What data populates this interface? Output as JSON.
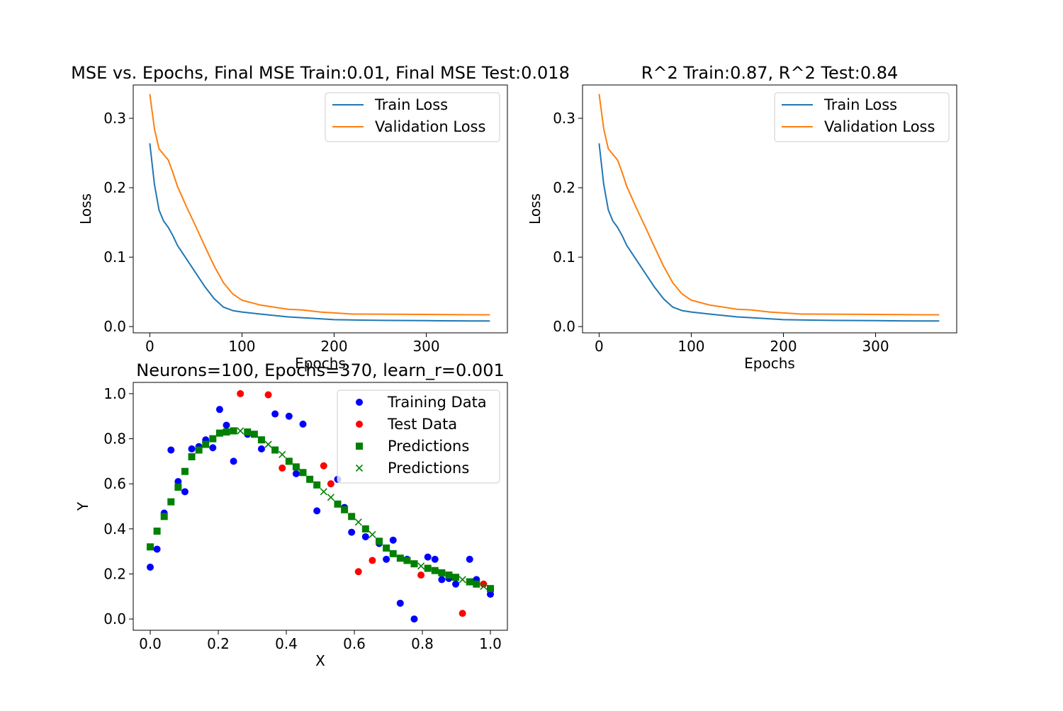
{
  "colors": {
    "train": "#1f77b4",
    "validation": "#ff7f0e",
    "training_data": "#0000ff",
    "test_data": "#ff0000",
    "predictions": "#008000"
  },
  "chart_data": [
    {
      "type": "line",
      "title": "MSE vs. Epochs, Final MSE Train:0.01, Final MSE Test:0.018",
      "xlabel": "Epochs",
      "ylabel": "Loss",
      "xlim": [
        -18,
        388
      ],
      "ylim": [
        -0.009,
        0.348
      ],
      "xticks": [
        "0",
        "100",
        "200",
        "300"
      ],
      "yticks": [
        "0.0",
        "0.1",
        "0.2",
        "0.3"
      ],
      "legend_position": "top-right",
      "grid": false,
      "series": [
        {
          "name": "Train Loss",
          "x": [
            0,
            5,
            10,
            15,
            20,
            25,
            30,
            40,
            50,
            60,
            70,
            80,
            90,
            100,
            120,
            150,
            175,
            200,
            250,
            300,
            350,
            369
          ],
          "y": [
            0.264,
            0.205,
            0.168,
            0.152,
            0.143,
            0.131,
            0.117,
            0.097,
            0.077,
            0.057,
            0.04,
            0.028,
            0.023,
            0.021,
            0.018,
            0.014,
            0.012,
            0.01,
            0.009,
            0.0085,
            0.008,
            0.008
          ]
        },
        {
          "name": "Validation Loss",
          "x": [
            0,
            5,
            10,
            15,
            20,
            25,
            30,
            40,
            50,
            60,
            70,
            80,
            90,
            100,
            120,
            150,
            165,
            185,
            220,
            300,
            350,
            369
          ],
          "y": [
            0.335,
            0.285,
            0.256,
            0.248,
            0.24,
            0.222,
            0.202,
            0.172,
            0.144,
            0.115,
            0.087,
            0.063,
            0.047,
            0.038,
            0.031,
            0.025,
            0.024,
            0.021,
            0.018,
            0.0175,
            0.017,
            0.017
          ]
        }
      ]
    },
    {
      "type": "line",
      "title": "R^2 Train:0.87, R^2 Test:0.84",
      "xlabel": "Epochs",
      "ylabel": "Loss",
      "xlim": [
        -18,
        388
      ],
      "ylim": [
        -0.009,
        0.348
      ],
      "xticks": [
        "0",
        "100",
        "200",
        "300"
      ],
      "yticks": [
        "0.0",
        "0.1",
        "0.2",
        "0.3"
      ],
      "legend_position": "top-right",
      "grid": false,
      "series": [
        {
          "name": "Train Loss",
          "x": [
            0,
            5,
            10,
            15,
            20,
            25,
            30,
            40,
            50,
            60,
            70,
            80,
            90,
            100,
            120,
            150,
            175,
            200,
            250,
            300,
            350,
            369
          ],
          "y": [
            0.264,
            0.205,
            0.168,
            0.152,
            0.143,
            0.131,
            0.117,
            0.097,
            0.077,
            0.057,
            0.04,
            0.028,
            0.023,
            0.021,
            0.018,
            0.014,
            0.012,
            0.01,
            0.009,
            0.0085,
            0.008,
            0.008
          ]
        },
        {
          "name": "Validation Loss",
          "x": [
            0,
            5,
            10,
            15,
            20,
            25,
            30,
            40,
            50,
            60,
            70,
            80,
            90,
            100,
            120,
            150,
            165,
            185,
            220,
            300,
            350,
            369
          ],
          "y": [
            0.335,
            0.285,
            0.256,
            0.248,
            0.24,
            0.222,
            0.202,
            0.172,
            0.144,
            0.115,
            0.087,
            0.063,
            0.047,
            0.038,
            0.031,
            0.025,
            0.024,
            0.021,
            0.018,
            0.0175,
            0.017,
            0.017
          ]
        }
      ]
    },
    {
      "type": "scatter",
      "title": "Neurons=100, Epochs=370, learn_r=0.001",
      "xlabel": "X",
      "ylabel": "Y",
      "xlim": [
        -0.05,
        1.05
      ],
      "ylim": [
        -0.05,
        1.05
      ],
      "xticks": [
        "0.0",
        "0.2",
        "0.4",
        "0.6",
        "0.8",
        "1.0"
      ],
      "yticks": [
        "0.0",
        "0.2",
        "0.4",
        "0.6",
        "0.8",
        "1.0"
      ],
      "legend_position": "top-right",
      "grid": false,
      "series": [
        {
          "name": "Training Data",
          "marker": "circle",
          "points": [
            [
              0.0,
              0.23
            ],
            [
              0.02,
              0.31
            ],
            [
              0.041,
              0.47
            ],
            [
              0.061,
              0.75
            ],
            [
              0.082,
              0.61
            ],
            [
              0.102,
              0.565
            ],
            [
              0.122,
              0.755
            ],
            [
              0.143,
              0.765
            ],
            [
              0.163,
              0.795
            ],
            [
              0.184,
              0.76
            ],
            [
              0.204,
              0.93
            ],
            [
              0.224,
              0.86
            ],
            [
              0.245,
              0.7
            ],
            [
              0.286,
              0.82
            ],
            [
              0.327,
              0.755
            ],
            [
              0.367,
              0.91
            ],
            [
              0.408,
              0.9
            ],
            [
              0.429,
              0.645
            ],
            [
              0.449,
              0.865
            ],
            [
              0.49,
              0.48
            ],
            [
              0.551,
              0.62
            ],
            [
              0.571,
              0.495
            ],
            [
              0.592,
              0.385
            ],
            [
              0.633,
              0.365
            ],
            [
              0.673,
              0.335
            ],
            [
              0.694,
              0.265
            ],
            [
              0.714,
              0.35
            ],
            [
              0.735,
              0.07
            ],
            [
              0.755,
              0.265
            ],
            [
              0.776,
              0.0
            ],
            [
              0.816,
              0.275
            ],
            [
              0.837,
              0.265
            ],
            [
              0.857,
              0.175
            ],
            [
              0.878,
              0.18
            ],
            [
              0.898,
              0.155
            ],
            [
              0.939,
              0.265
            ],
            [
              0.959,
              0.175
            ],
            [
              1.0,
              0.11
            ]
          ]
        },
        {
          "name": "Test Data",
          "marker": "circle",
          "points": [
            [
              0.265,
              1.0
            ],
            [
              0.347,
              0.995
            ],
            [
              0.388,
              0.67
            ],
            [
              0.51,
              0.68
            ],
            [
              0.531,
              0.6
            ],
            [
              0.612,
              0.21
            ],
            [
              0.653,
              0.26
            ],
            [
              0.796,
              0.195
            ],
            [
              0.918,
              0.025
            ],
            [
              0.98,
              0.155
            ]
          ]
        },
        {
          "name": "Predictions",
          "marker": "square",
          "points": [
            [
              0.0,
              0.32
            ],
            [
              0.02,
              0.39
            ],
            [
              0.041,
              0.455
            ],
            [
              0.061,
              0.52
            ],
            [
              0.082,
              0.585
            ],
            [
              0.102,
              0.655
            ],
            [
              0.122,
              0.72
            ],
            [
              0.143,
              0.75
            ],
            [
              0.163,
              0.775
            ],
            [
              0.184,
              0.8
            ],
            [
              0.204,
              0.825
            ],
            [
              0.224,
              0.83
            ],
            [
              0.245,
              0.835
            ],
            [
              0.286,
              0.83
            ],
            [
              0.306,
              0.82
            ],
            [
              0.327,
              0.795
            ],
            [
              0.367,
              0.75
            ],
            [
              0.408,
              0.7
            ],
            [
              0.429,
              0.675
            ],
            [
              0.449,
              0.65
            ],
            [
              0.469,
              0.62
            ],
            [
              0.49,
              0.595
            ],
            [
              0.551,
              0.51
            ],
            [
              0.571,
              0.485
            ],
            [
              0.592,
              0.455
            ],
            [
              0.633,
              0.4
            ],
            [
              0.673,
              0.345
            ],
            [
              0.694,
              0.315
            ],
            [
              0.714,
              0.29
            ],
            [
              0.735,
              0.27
            ],
            [
              0.755,
              0.26
            ],
            [
              0.776,
              0.245
            ],
            [
              0.816,
              0.225
            ],
            [
              0.837,
              0.215
            ],
            [
              0.857,
              0.205
            ],
            [
              0.878,
              0.195
            ],
            [
              0.898,
              0.185
            ],
            [
              0.939,
              0.165
            ],
            [
              0.959,
              0.155
            ],
            [
              1.0,
              0.135
            ]
          ]
        },
        {
          "name": "Predictions",
          "marker": "x",
          "points": [
            [
              0.265,
              0.835
            ],
            [
              0.347,
              0.775
            ],
            [
              0.388,
              0.73
            ],
            [
              0.51,
              0.565
            ],
            [
              0.531,
              0.54
            ],
            [
              0.612,
              0.43
            ],
            [
              0.653,
              0.375
            ],
            [
              0.796,
              0.235
            ],
            [
              0.918,
              0.175
            ],
            [
              0.98,
              0.145
            ]
          ]
        }
      ]
    }
  ]
}
